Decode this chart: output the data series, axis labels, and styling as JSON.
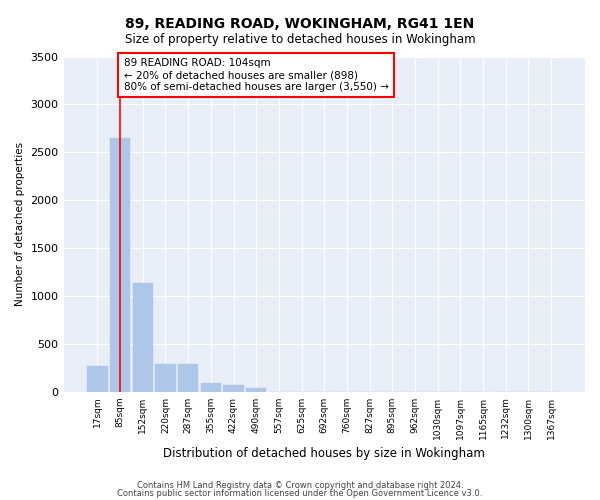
{
  "title": "89, READING ROAD, WOKINGHAM, RG41 1EN",
  "subtitle": "Size of property relative to detached houses in Wokingham",
  "xlabel": "Distribution of detached houses by size in Wokingham",
  "ylabel": "Number of detached properties",
  "bar_color": "#aec6e8",
  "bar_edge_color": "#aec6e8",
  "background_color": "#e8eef8",
  "grid_color": "#ffffff",
  "vline_x": 1.0,
  "vline_color": "red",
  "categories": [
    "17sqm",
    "85sqm",
    "152sqm",
    "220sqm",
    "287sqm",
    "355sqm",
    "422sqm",
    "490sqm",
    "557sqm",
    "625sqm",
    "692sqm",
    "760sqm",
    "827sqm",
    "895sqm",
    "962sqm",
    "1030sqm",
    "1097sqm",
    "1165sqm",
    "1232sqm",
    "1300sqm",
    "1367sqm"
  ],
  "values": [
    270,
    2650,
    1140,
    285,
    285,
    95,
    65,
    40,
    0,
    0,
    0,
    0,
    0,
    0,
    0,
    0,
    0,
    0,
    0,
    0,
    0
  ],
  "ylim": [
    0,
    3500
  ],
  "yticks": [
    0,
    500,
    1000,
    1500,
    2000,
    2500,
    3000,
    3500
  ],
  "annotation_text": "89 READING ROAD: 104sqm\n← 20% of detached houses are smaller (898)\n80% of semi-detached houses are larger (3,550) →",
  "annotation_box_color": "white",
  "annotation_box_edge_color": "red",
  "footnote1": "Contains HM Land Registry data © Crown copyright and database right 2024.",
  "footnote2": "Contains public sector information licensed under the Open Government Licence v3.0."
}
